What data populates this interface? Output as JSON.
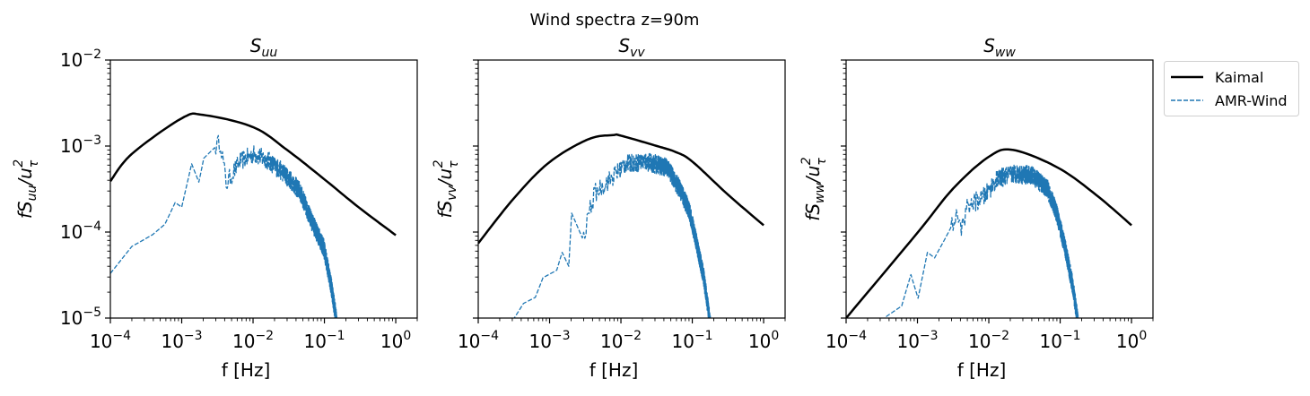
{
  "suptitle": "Wind spectra z=90m",
  "legend": {
    "placement": "outside-right-top",
    "entries": [
      {
        "label": "Kaimal",
        "style": "solid",
        "color": "#000000"
      },
      {
        "label": "AMR-Wind",
        "style": "dashed",
        "color": "#1f77b4"
      }
    ]
  },
  "chart_data": [
    {
      "type": "line",
      "title": {
        "base": "S",
        "sub": "uu"
      },
      "xlabel": "f [Hz]",
      "ylabel": {
        "pre": "fS",
        "sub": "uu",
        "mid": "/u",
        "sub2": "τ",
        "sup": "2"
      },
      "xscale": "log",
      "yscale": "log",
      "xlim": [
        0.0001,
        2.0
      ],
      "ylim": [
        1e-05,
        0.01
      ],
      "xticks": [
        {
          "value": 0.0001,
          "base": "10",
          "exp": "−4"
        },
        {
          "value": 0.001,
          "base": "10",
          "exp": "−3"
        },
        {
          "value": 0.01,
          "base": "10",
          "exp": "−2"
        },
        {
          "value": 0.1,
          "base": "10",
          "exp": "−1"
        },
        {
          "value": 1,
          "base": "10",
          "exp": "0"
        }
      ],
      "yticks": [
        {
          "value": 1e-05,
          "base": "10",
          "exp": "−5"
        },
        {
          "value": 0.0001,
          "base": "10",
          "exp": "−4"
        },
        {
          "value": 0.001,
          "base": "10",
          "exp": "−3"
        },
        {
          "value": 0.01,
          "base": "10",
          "exp": "−2"
        }
      ],
      "series": [
        {
          "name": "Kaimal",
          "color": "#000000",
          "f": [
            0.0001,
            0.0002,
            0.001,
            0.002,
            0.01,
            0.03,
            0.1,
            0.3,
            1.0
          ],
          "S": [
            0.00039,
            0.00081,
            0.0021,
            0.0023,
            0.00166,
            0.0009,
            0.00041,
            0.000195,
            9.2e-05
          ]
        },
        {
          "name": "AMR-Wind",
          "color": "#1f77b4",
          "f": [
            0.0001,
            0.0002,
            0.00039,
            0.00058,
            0.00081,
            0.001,
            0.00138,
            0.00174,
            0.00204,
            0.0035,
            0.0042,
            0.0065,
            0.0105,
            0.017,
            0.0275,
            0.045,
            0.066,
            0.098,
            0.123,
            0.145,
            0.15
          ],
          "S": [
            3.3e-05,
            6.8e-05,
            9.3e-05,
            0.000123,
            0.00022,
            0.000195,
            0.00062,
            0.00038,
            0.00072,
            0.00112,
            0.00036,
            0.00066,
            0.00081,
            0.00066,
            0.00048,
            0.0003,
            0.000135,
            6.6e-05,
            2.5e-05,
            1.05e-05,
            8e-06
          ]
        }
      ]
    },
    {
      "type": "line",
      "title": {
        "base": "S",
        "sub": "vv"
      },
      "xlabel": "f [Hz]",
      "ylabel": {
        "pre": "fS",
        "sub": "vv",
        "mid": "/u",
        "sub2": "τ",
        "sup": "2"
      },
      "xscale": "log",
      "yscale": "log",
      "xlim": [
        0.0001,
        2.0
      ],
      "ylim": [
        1e-05,
        0.01
      ],
      "xticks": [
        {
          "value": 0.0001,
          "base": "10",
          "exp": "−4"
        },
        {
          "value": 0.001,
          "base": "10",
          "exp": "−3"
        },
        {
          "value": 0.01,
          "base": "10",
          "exp": "−2"
        },
        {
          "value": 0.1,
          "base": "10",
          "exp": "−1"
        },
        {
          "value": 1,
          "base": "10",
          "exp": "0"
        }
      ],
      "yticks": [],
      "series": [
        {
          "name": "Kaimal",
          "color": "#000000",
          "f": [
            0.0001,
            0.00032,
            0.001,
            0.0035,
            0.0078,
            0.01,
            0.032,
            0.059,
            0.1,
            0.32,
            1.0
          ],
          "S": [
            7.4e-05,
            0.00025,
            0.00065,
            0.0012,
            0.00134,
            0.00132,
            0.001,
            0.00085,
            0.00066,
            0.00027,
            0.00012
          ]
        },
        {
          "name": "AMR-Wind",
          "color": "#1f77b4",
          "f": [
            0.00025,
            0.00032,
            0.00043,
            0.00063,
            0.00081,
            0.00126,
            0.0015,
            0.00186,
            0.00204,
            0.003,
            0.0036,
            0.0044,
            0.0071,
            0.0115,
            0.023,
            0.045,
            0.066,
            0.089,
            0.107,
            0.145,
            0.174,
            0.18
          ],
          "S": [
            7e-06,
            1e-05,
            1.48e-05,
            1.74e-05,
            2.95e-05,
            3.6e-05,
            5.8e-05,
            4e-05,
            0.000166,
            7.9e-05,
            0.000178,
            0.00029,
            0.00041,
            0.00062,
            0.00066,
            0.00056,
            0.00032,
            0.000186,
            9.8e-05,
            2.95e-05,
            1e-05,
            8e-06
          ]
        }
      ]
    },
    {
      "type": "line",
      "title": {
        "base": "S",
        "sub": "ww"
      },
      "xlabel": "f [Hz]",
      "ylabel": {
        "pre": "fS",
        "sub": "ww",
        "mid": "/u",
        "sub2": "τ",
        "sup": "2"
      },
      "xscale": "log",
      "yscale": "log",
      "xlim": [
        0.0001,
        2.0
      ],
      "ylim": [
        1e-05,
        0.01
      ],
      "xticks": [
        {
          "value": 0.0001,
          "base": "10",
          "exp": "−4"
        },
        {
          "value": 0.001,
          "base": "10",
          "exp": "−3"
        },
        {
          "value": 0.01,
          "base": "10",
          "exp": "−2"
        },
        {
          "value": 0.1,
          "base": "10",
          "exp": "−1"
        },
        {
          "value": 1,
          "base": "10",
          "exp": "0"
        }
      ],
      "yticks": [],
      "series": [
        {
          "name": "Kaimal",
          "color": "#000000",
          "f": [
            0.0001,
            0.001,
            0.00316,
            0.01,
            0.022,
            0.093,
            0.32,
            1.0
          ],
          "S": [
            1e-05,
            9.8e-05,
            0.00032,
            0.00075,
            0.0009,
            0.00056,
            0.00027,
            0.00012
          ]
        },
        {
          "name": "AMR-Wind",
          "color": "#1f77b4",
          "f": [
            0.00028,
            0.00037,
            0.0006,
            0.00081,
            0.00102,
            0.00138,
            0.00174,
            0.0027,
            0.0035,
            0.004,
            0.0051,
            0.0087,
            0.0129,
            0.023,
            0.041,
            0.066,
            0.089,
            0.117,
            0.151,
            0.174,
            0.18
          ],
          "S": [
            8e-06,
            1.05e-05,
            1.38e-05,
            3.2e-05,
            1.7e-05,
            5.8e-05,
            5e-05,
            9.8e-05,
            0.00015,
            0.000107,
            0.0002,
            0.00026,
            0.00041,
            0.00048,
            0.00045,
            0.00032,
            0.00017,
            6.6e-05,
            2.3e-05,
            1e-05,
            8e-06
          ]
        }
      ]
    }
  ]
}
